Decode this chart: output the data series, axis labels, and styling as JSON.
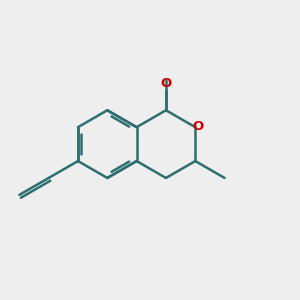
{
  "bg_color": "#eeeeee",
  "bond_color": "#2d6e6e",
  "heteroatom_color": "#cc0000",
  "bond_width": 1.8,
  "figsize": [
    3.0,
    3.0
  ],
  "dpi": 100,
  "s": 0.115
}
